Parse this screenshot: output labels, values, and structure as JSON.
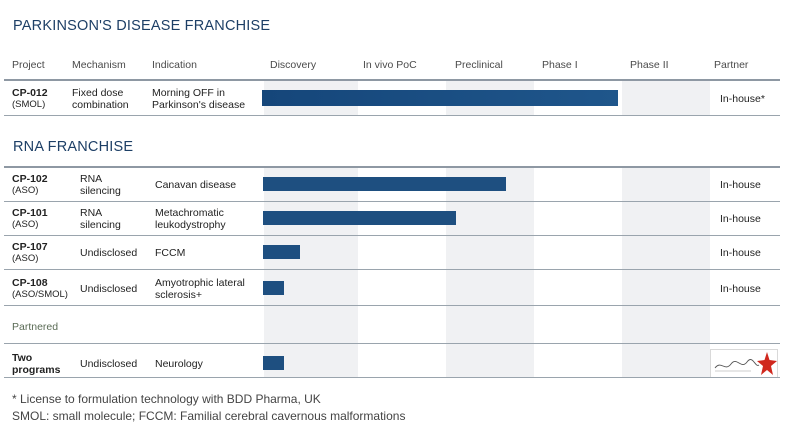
{
  "sections": {
    "parkinson_title": "PARKINSON'S DISEASE FRANCHISE",
    "rna_title": "RNA FRANCHISE"
  },
  "headers": {
    "project": "Project",
    "mechanism": "Mechanism",
    "indication": "Indication",
    "discovery": "Discovery",
    "invivo": "In vivo PoC",
    "preclinical": "Preclinical",
    "phase1": "Phase I",
    "phase2": "Phase II",
    "partner": "Partner"
  },
  "parkinson_rows": [
    {
      "id": "CP-012",
      "type": "(SMOL)",
      "mechanism": "Fixed dose combination",
      "indication": "Morning OFF in Parkinson's disease",
      "partner": "In-house*",
      "progress": 0.72
    }
  ],
  "rna_rows": [
    {
      "id": "CP-102",
      "type": "(ASO)",
      "mechanism": "RNA silencing",
      "indication": "Canavan disease",
      "partner": "In-house",
      "progress": 0.49
    },
    {
      "id": "CP-101",
      "type": "(ASO)",
      "mechanism": "RNA silencing",
      "indication": "Metachromatic leukodystrophy",
      "partner": "In-house",
      "progress": 0.39
    },
    {
      "id": "CP-107",
      "type": "(ASO)",
      "mechanism": "Undisclosed",
      "indication": "FCCM",
      "partner": "In-house",
      "progress": 0.075
    },
    {
      "id": "CP-108",
      "type": "(ASO/SMOL)",
      "mechanism": "Undisclosed",
      "indication": "Amyotrophic lateral sclerosis+",
      "partner": "In-house",
      "progress": 0.042
    }
  ],
  "partnered": {
    "label": "Partnered",
    "rows": [
      {
        "id": "Two programs",
        "mechanism": "Undisclosed",
        "indication": "Neurology",
        "partner_logo": "lundbeck-logo",
        "progress": 0.042
      }
    ]
  },
  "footnotes": {
    "line1": "* License to formulation technology with BDD Pharma, UK",
    "line2": "SMOL: small molecule; FCCM: Familial cerebral cavernous malformations"
  },
  "colors": {
    "title": "#1d3f66",
    "bar": "#1e4f80",
    "band": "#f0f1f3",
    "logo_star": "#d0281e"
  }
}
